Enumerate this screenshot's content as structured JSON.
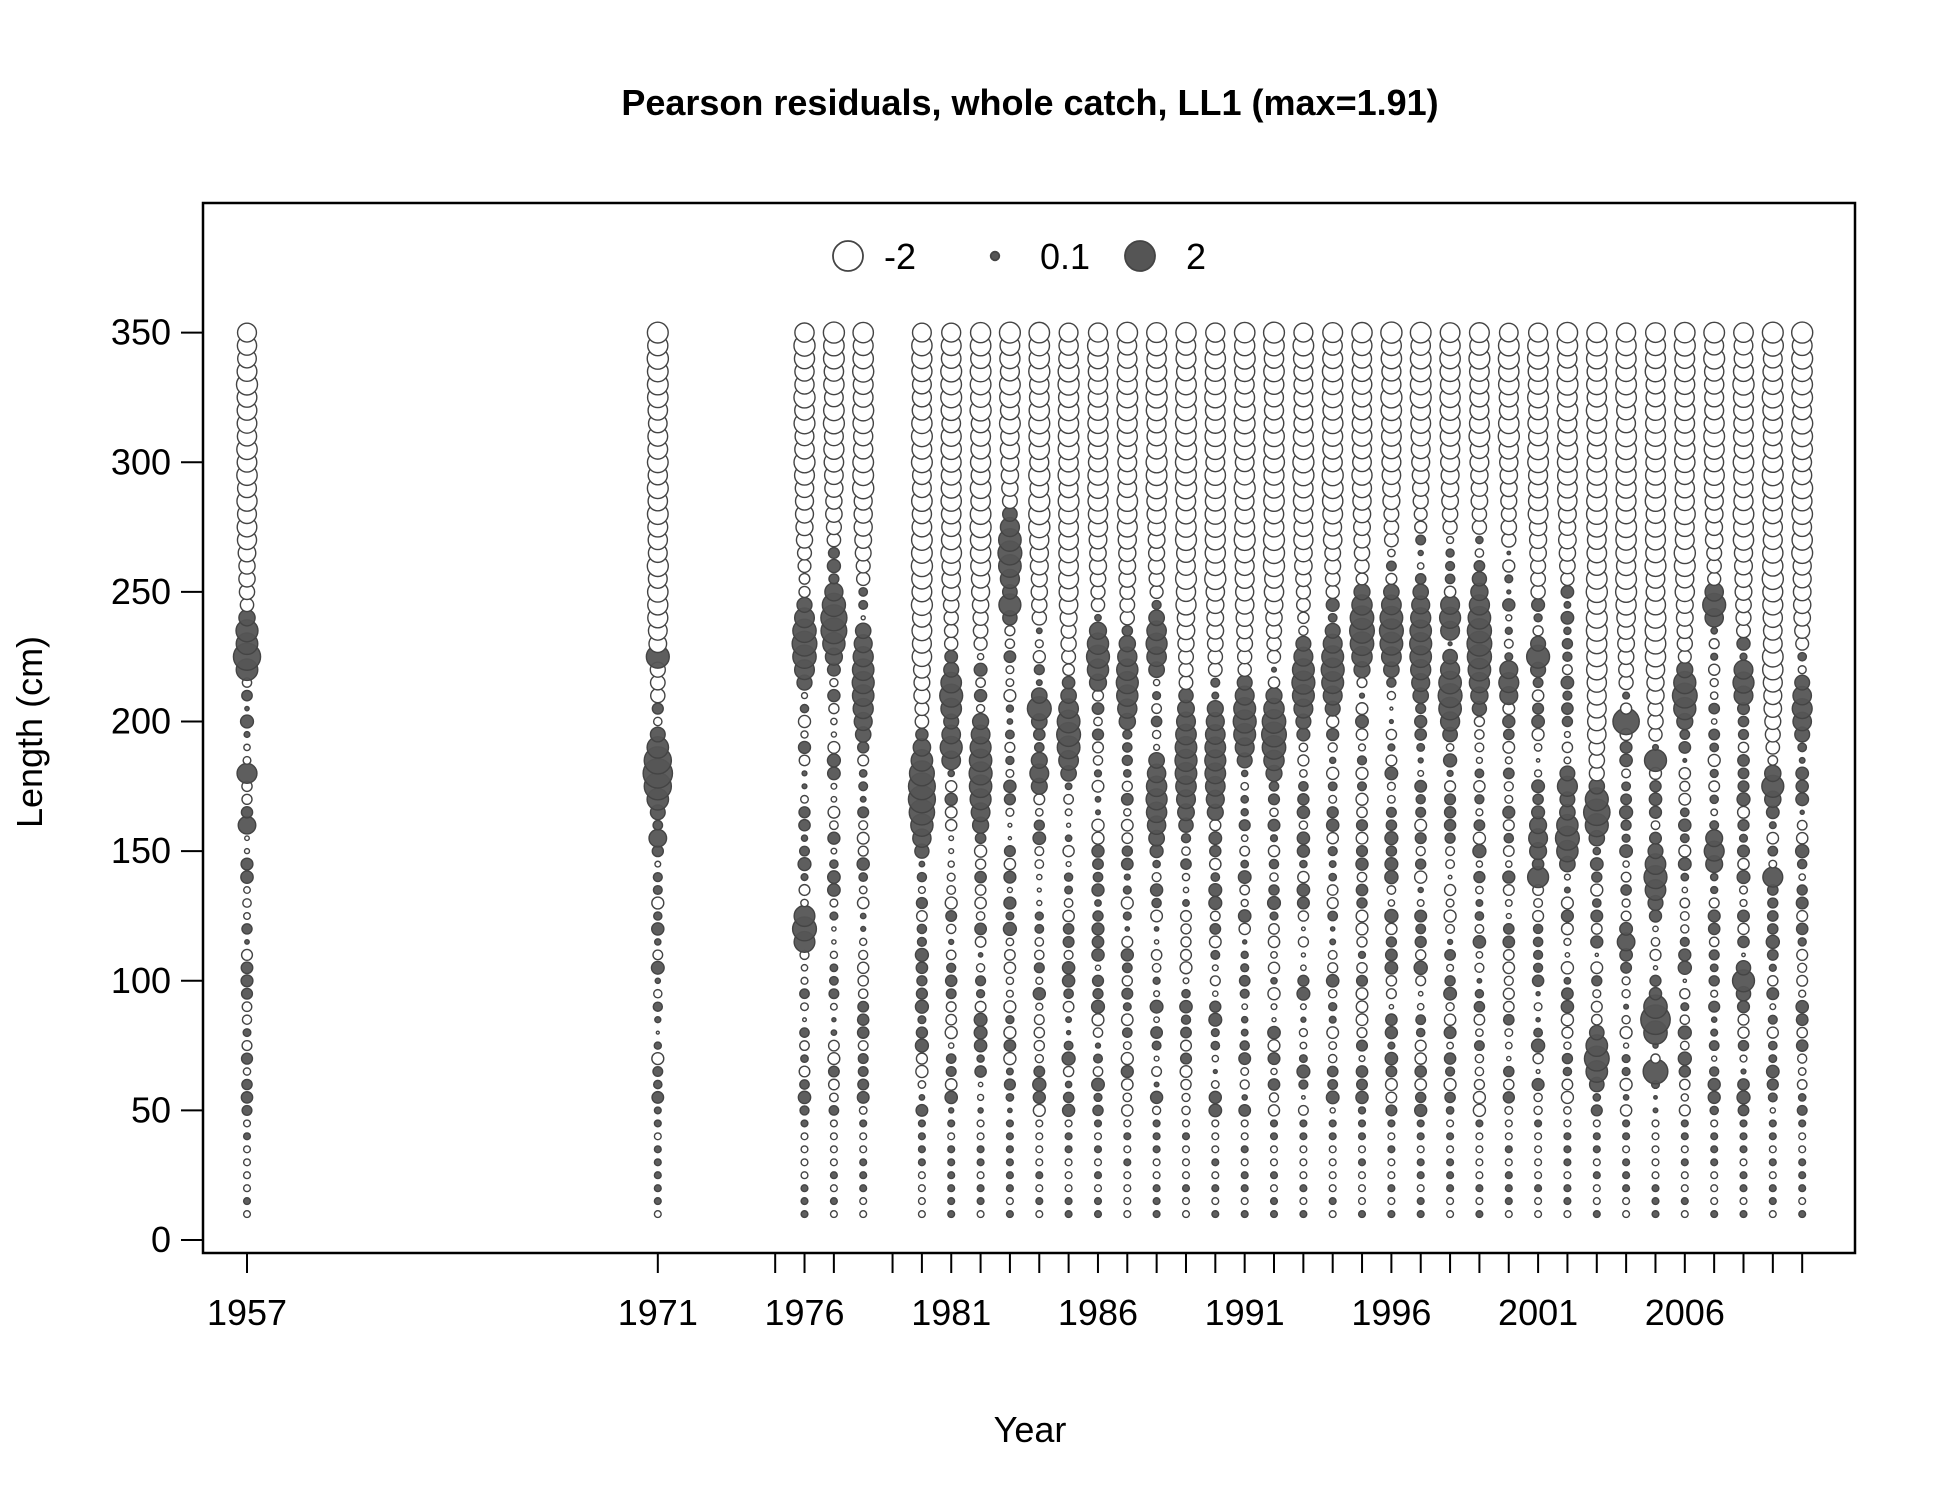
{
  "chart_data": {
    "type": "scatter",
    "title": "Pearson residuals, whole catch, LL1 (max=1.91)",
    "xlabel": "Year",
    "ylabel": "Length (cm)",
    "xlim": [
      1955.5,
      2011.8
    ],
    "ylim": [
      -5,
      400
    ],
    "x_tick_labels": [
      "1957",
      "1971",
      "1976",
      "1981",
      "1986",
      "1991",
      "1996",
      "2001",
      "2006"
    ],
    "x_ticks_minor": [
      1957,
      1971,
      1975,
      1976,
      1977,
      1979,
      1980,
      1981,
      1982,
      1983,
      1984,
      1985,
      1986,
      1987,
      1988,
      1989,
      1990,
      1991,
      1992,
      1993,
      1994,
      1995,
      1996,
      1997,
      1998,
      1999,
      2000,
      2001,
      2002,
      2003,
      2004,
      2005,
      2006,
      2007,
      2008,
      2009,
      2010
    ],
    "y_ticks": [
      0,
      50,
      100,
      150,
      200,
      250,
      300,
      350
    ],
    "legend": {
      "position": "top-center",
      "entries": [
        {
          "label": "-2",
          "value": -2
        },
        {
          "label": "0.1",
          "value": 0.1
        },
        {
          "label": "2",
          "value": 2
        }
      ]
    },
    "colors": {
      "positive_fill": "#555555",
      "negative_fill": "#ffffff",
      "stroke": "#444444"
    },
    "length_bins": {
      "start": 10,
      "end": 350,
      "step": 5
    },
    "max_abs_residual": 1.91,
    "years": [
      {
        "year": 1957,
        "ne": 350,
        "nb": 240,
        "peaks": [
          [
            225,
            1.6,
            7
          ],
          [
            180,
            0.8,
            3
          ],
          [
            160,
            0.6,
            3
          ],
          [
            235,
            1.0,
            6
          ]
        ]
      },
      {
        "year": 1971,
        "ne": 350,
        "nb": 205,
        "peaks": [
          [
            180,
            1.9,
            12
          ],
          [
            225,
            1.1,
            3
          ],
          [
            155,
            0.6,
            3
          ]
        ]
      },
      {
        "year": 1976,
        "ne": 350,
        "nb": 255,
        "peaks": [
          [
            230,
            1.3,
            14
          ],
          [
            120,
            1.2,
            9
          ]
        ]
      },
      {
        "year": 1977,
        "ne": 350,
        "nb": 265,
        "peaks": [
          [
            238,
            1.5,
            13
          ]
        ]
      },
      {
        "year": 1978,
        "ne": 350,
        "nb": 250,
        "peaks": [
          [
            215,
            1.0,
            22
          ]
        ]
      },
      {
        "year": 1980,
        "ne": 350,
        "nb": 195,
        "peaks": [
          [
            172,
            1.6,
            18
          ]
        ]
      },
      {
        "year": 1981,
        "ne": 350,
        "nb": 228,
        "peaks": [
          [
            210,
            1.1,
            10
          ],
          [
            190,
            1.0,
            8
          ]
        ]
      },
      {
        "year": 1982,
        "ne": 350,
        "nb": 225,
        "peaks": [
          [
            180,
            1.1,
            22
          ]
        ]
      },
      {
        "year": 1983,
        "ne": 350,
        "nb": 275,
        "peaks": [
          [
            265,
            1.2,
            14
          ],
          [
            245,
            1.0,
            5
          ]
        ]
      },
      {
        "year": 1984,
        "ne": 350,
        "nb": 235,
        "peaks": [
          [
            205,
            1.2,
            5
          ],
          [
            180,
            0.7,
            8
          ]
        ]
      },
      {
        "year": 1985,
        "ne": 350,
        "nb": 220,
        "peaks": [
          [
            195,
            1.2,
            15
          ]
        ]
      },
      {
        "year": 1986,
        "ne": 350,
        "nb": 240,
        "peaks": [
          [
            225,
            1.1,
            12
          ]
        ]
      },
      {
        "year": 1987,
        "ne": 350,
        "nb": 235,
        "peaks": [
          [
            215,
            1.0,
            18
          ]
        ]
      },
      {
        "year": 1988,
        "ne": 350,
        "nb": 245,
        "peaks": [
          [
            230,
            0.9,
            12
          ],
          [
            170,
            0.9,
            18
          ]
        ]
      },
      {
        "year": 1989,
        "ne": 350,
        "nb": 210,
        "peaks": [
          [
            185,
            1.0,
            25
          ]
        ]
      },
      {
        "year": 1990,
        "ne": 350,
        "nb": 215,
        "peaks": [
          [
            185,
            0.9,
            25
          ]
        ]
      },
      {
        "year": 1991,
        "ne": 350,
        "nb": 218,
        "peaks": [
          [
            200,
            1.1,
            15
          ]
        ]
      },
      {
        "year": 1992,
        "ne": 350,
        "nb": 220,
        "peaks": [
          [
            195,
            1.3,
            15
          ]
        ]
      },
      {
        "year": 1993,
        "ne": 350,
        "nb": 240,
        "peaks": [
          [
            215,
            1.1,
            15
          ]
        ]
      },
      {
        "year": 1994,
        "ne": 350,
        "nb": 245,
        "peaks": [
          [
            220,
            1.1,
            15
          ]
        ]
      },
      {
        "year": 1995,
        "ne": 350,
        "nb": 255,
        "peaks": [
          [
            235,
            1.3,
            15
          ]
        ]
      },
      {
        "year": 1996,
        "ne": 350,
        "nb": 265,
        "peaks": [
          [
            235,
            1.2,
            15
          ]
        ]
      },
      {
        "year": 1997,
        "ne": 350,
        "nb": 275,
        "peaks": [
          [
            230,
            1.0,
            22
          ]
        ]
      },
      {
        "year": 1998,
        "ne": 350,
        "nb": 270,
        "peaks": [
          [
            210,
            1.2,
            14
          ],
          [
            240,
            0.9,
            10
          ]
        ]
      },
      {
        "year": 1999,
        "ne": 350,
        "nb": 270,
        "peaks": [
          [
            230,
            1.3,
            22
          ]
        ]
      },
      {
        "year": 2000,
        "ne": 350,
        "nb": 265,
        "peaks": [
          [
            215,
            0.8,
            10
          ]
        ]
      },
      {
        "year": 2001,
        "ne": 350,
        "nb": 245,
        "peaks": [
          [
            225,
            1.1,
            5
          ],
          [
            140,
            0.9,
            5
          ],
          [
            155,
            0.7,
            10
          ]
        ]
      },
      {
        "year": 2002,
        "ne": 350,
        "nb": 250,
        "peaks": [
          [
            155,
            1.2,
            10
          ],
          [
            175,
            0.8,
            6
          ]
        ]
      },
      {
        "year": 2003,
        "ne": 350,
        "nb": 170,
        "peaks": [
          [
            165,
            1.5,
            9
          ],
          [
            70,
            1.3,
            9
          ]
        ]
      },
      {
        "year": 2004,
        "ne": 350,
        "nb": 210,
        "peaks": [
          [
            200,
            1.5,
            4
          ],
          [
            115,
            0.6,
            4
          ]
        ]
      },
      {
        "year": 2005,
        "ne": 350,
        "nb": 190,
        "peaks": [
          [
            85,
            1.91,
            7
          ],
          [
            65,
            1.3,
            4
          ],
          [
            140,
            1.1,
            10
          ],
          [
            185,
            1.0,
            4
          ]
        ]
      },
      {
        "year": 2006,
        "ne": 350,
        "nb": 220,
        "peaks": [
          [
            210,
            1.3,
            10
          ]
        ]
      },
      {
        "year": 2007,
        "ne": 350,
        "nb": 250,
        "peaks": [
          [
            245,
            1.1,
            7
          ],
          [
            150,
            0.8,
            8
          ]
        ]
      },
      {
        "year": 2008,
        "ne": 350,
        "nb": 230,
        "peaks": [
          [
            215,
            0.9,
            10
          ],
          [
            100,
            1.0,
            5
          ]
        ]
      },
      {
        "year": 2009,
        "ne": 350,
        "nb": 185,
        "peaks": [
          [
            175,
            1.0,
            6
          ],
          [
            140,
            0.8,
            3
          ]
        ]
      },
      {
        "year": 2010,
        "ne": 350,
        "nb": 225,
        "peaks": [
          [
            205,
            0.8,
            12
          ]
        ]
      }
    ]
  }
}
